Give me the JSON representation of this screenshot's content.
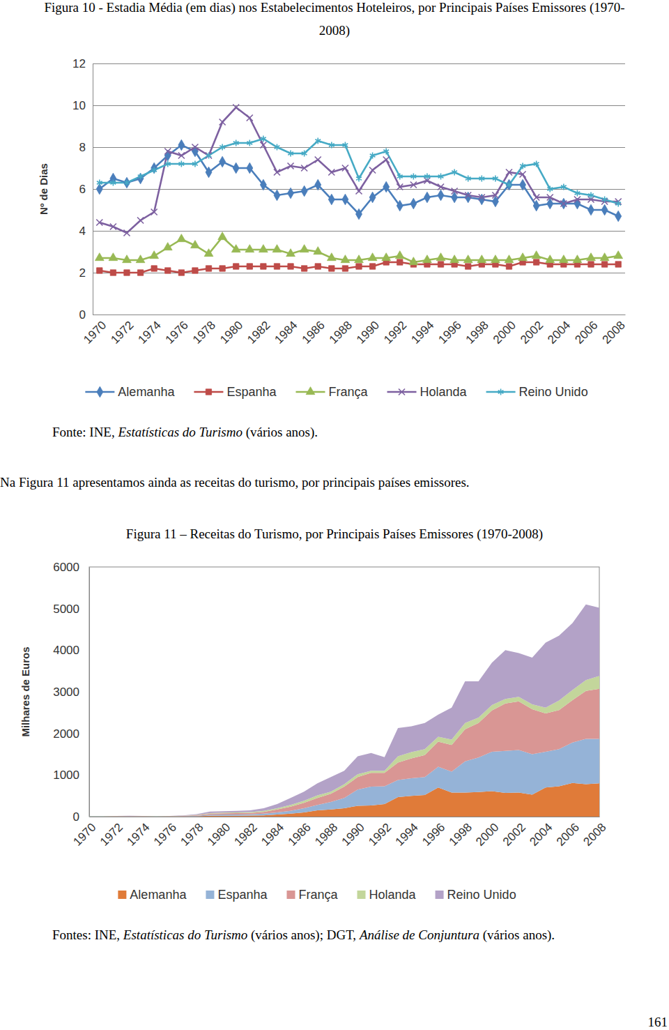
{
  "chart_data": [
    {
      "type": "line",
      "title": [
        "Figura 10 - Estadia Média (em dias) nos Estabelecimentos Hoteleiros, por Principais Países Emissores (1970-",
        "2008)"
      ],
      "y_label": "Nº de Dias",
      "source": [
        "Fonte: INE, ",
        "Estatísticas do Turismo",
        " (vários anos)."
      ],
      "x": [
        1970,
        1971,
        1972,
        1973,
        1974,
        1975,
        1976,
        1977,
        1978,
        1979,
        1980,
        1981,
        1982,
        1983,
        1984,
        1985,
        1986,
        1987,
        1988,
        1989,
        1990,
        1991,
        1992,
        1993,
        1994,
        1995,
        1996,
        1997,
        1998,
        1999,
        2000,
        2001,
        2002,
        2003,
        2004,
        2005,
        2006,
        2007,
        2008
      ],
      "xlim": [
        1969.5,
        2008.5
      ],
      "xticks": [
        1970,
        1972,
        1974,
        1976,
        1978,
        1980,
        1982,
        1984,
        1986,
        1988,
        1990,
        1992,
        1994,
        1996,
        1998,
        2000,
        2002,
        2004,
        2006,
        2008
      ],
      "ylim": [
        0,
        12
      ],
      "yticks": [
        0,
        2,
        4,
        6,
        8,
        10,
        12
      ],
      "grid": true,
      "legend": "bottom",
      "series": [
        {
          "name": "Alemanha",
          "color": "#4a7ebb",
          "marker": "diamond",
          "values": [
            6.0,
            6.5,
            6.3,
            6.5,
            7.0,
            7.6,
            8.1,
            7.8,
            6.8,
            7.3,
            7.0,
            7.0,
            6.2,
            5.7,
            5.8,
            5.9,
            6.2,
            5.5,
            5.5,
            4.8,
            5.6,
            6.1,
            5.2,
            5.3,
            5.6,
            5.7,
            5.6,
            5.6,
            5.5,
            5.4,
            6.2,
            6.2,
            5.2,
            5.3,
            5.3,
            5.3,
            5.0,
            5.0,
            4.7
          ]
        },
        {
          "name": "Espanha",
          "color": "#be4b48",
          "marker": "square",
          "values": [
            2.1,
            2.0,
            2.0,
            2.0,
            2.2,
            2.1,
            2.0,
            2.1,
            2.2,
            2.2,
            2.3,
            2.3,
            2.3,
            2.3,
            2.3,
            2.2,
            2.3,
            2.2,
            2.2,
            2.3,
            2.3,
            2.5,
            2.5,
            2.4,
            2.4,
            2.4,
            2.4,
            2.3,
            2.4,
            2.4,
            2.3,
            2.5,
            2.5,
            2.4,
            2.4,
            2.4,
            2.4,
            2.4,
            2.4
          ]
        },
        {
          "name": "França",
          "color": "#98b954",
          "marker": "triangle",
          "values": [
            2.7,
            2.7,
            2.6,
            2.6,
            2.8,
            3.2,
            3.6,
            3.3,
            2.9,
            3.7,
            3.1,
            3.1,
            3.1,
            3.1,
            2.9,
            3.1,
            3.0,
            2.7,
            2.6,
            2.6,
            2.7,
            2.7,
            2.8,
            2.5,
            2.6,
            2.7,
            2.6,
            2.6,
            2.6,
            2.6,
            2.6,
            2.7,
            2.8,
            2.6,
            2.6,
            2.6,
            2.7,
            2.7,
            2.8
          ]
        },
        {
          "name": "Holanda",
          "color": "#7d60a0",
          "marker": "times",
          "values": [
            4.4,
            4.2,
            3.9,
            4.5,
            4.9,
            7.8,
            7.6,
            8.0,
            7.6,
            9.2,
            9.9,
            9.4,
            8.1,
            6.8,
            7.1,
            7.0,
            7.4,
            6.8,
            7.0,
            5.9,
            6.9,
            7.4,
            6.1,
            6.2,
            6.4,
            6.1,
            5.9,
            5.7,
            5.6,
            5.7,
            6.8,
            6.7,
            5.6,
            5.6,
            5.3,
            5.5,
            5.5,
            5.4,
            5.4
          ]
        },
        {
          "name": "Reino Unido",
          "color": "#46aac5",
          "marker": "asterisk",
          "values": [
            6.3,
            6.3,
            6.3,
            6.6,
            6.9,
            7.2,
            7.2,
            7.2,
            7.6,
            8.0,
            8.2,
            8.2,
            8.4,
            8.0,
            7.7,
            7.7,
            8.3,
            8.1,
            8.1,
            6.5,
            7.6,
            7.8,
            6.6,
            6.6,
            6.6,
            6.6,
            6.8,
            6.5,
            6.5,
            6.5,
            6.2,
            7.1,
            7.2,
            6.0,
            6.1,
            5.8,
            5.7,
            5.5,
            5.3
          ]
        }
      ]
    },
    {
      "type": "area",
      "title": [
        "Figura 11 – Receitas do Turismo, por Principais Países Emissores (1970-2008)"
      ],
      "y_label": "Milhares de Euros",
      "source": [
        "Fontes: INE, ",
        "Estatísticas do Turismo",
        " (vários anos); DGT, ",
        "Análise de Conjuntura",
        " (vários anos)."
      ],
      "x": [
        1970,
        1971,
        1972,
        1973,
        1974,
        1975,
        1976,
        1977,
        1978,
        1979,
        1980,
        1981,
        1982,
        1983,
        1984,
        1985,
        1986,
        1987,
        1988,
        1989,
        1990,
        1991,
        1992,
        1993,
        1994,
        1995,
        1996,
        1997,
        1998,
        1999,
        2000,
        2001,
        2002,
        2003,
        2004,
        2005,
        2006,
        2007,
        2008
      ],
      "xlim": [
        1970,
        2008
      ],
      "xticks": [
        1970,
        1972,
        1974,
        1976,
        1978,
        1980,
        1982,
        1984,
        1986,
        1988,
        1990,
        1992,
        1994,
        1996,
        1998,
        2000,
        2002,
        2004,
        2006,
        2008
      ],
      "ylim": [
        0,
        6000
      ],
      "yticks": [
        0,
        1000,
        2000,
        3000,
        4000,
        5000,
        6000
      ],
      "grid": false,
      "stacked": true,
      "legend": "bottom",
      "series": [
        {
          "name": "Alemanha",
          "color": "#e07b39",
          "values": [
            2,
            2,
            3,
            4,
            3,
            2,
            3,
            5,
            10,
            20,
            20,
            22,
            25,
            30,
            50,
            70,
            100,
            150,
            170,
            200,
            260,
            270,
            300,
            470,
            500,
            520,
            700,
            580,
            580,
            590,
            610,
            570,
            580,
            530,
            700,
            730,
            810,
            780,
            800
          ]
        },
        {
          "name": "Espanha",
          "color": "#95b3d7",
          "values": [
            2,
            2,
            3,
            4,
            3,
            2,
            3,
            5,
            10,
            25,
            30,
            30,
            30,
            40,
            50,
            70,
            100,
            130,
            180,
            250,
            390,
            450,
            430,
            410,
            420,
            430,
            500,
            500,
            750,
            830,
            950,
            1010,
            1020,
            970,
            860,
            890,
            970,
            1090,
            1070
          ]
        },
        {
          "name": "França",
          "color": "#d99694",
          "values": [
            2,
            2,
            3,
            4,
            3,
            2,
            3,
            6,
            12,
            25,
            30,
            30,
            35,
            45,
            70,
            100,
            130,
            170,
            200,
            270,
            300,
            330,
            320,
            420,
            480,
            530,
            600,
            640,
            770,
            830,
            990,
            1140,
            1170,
            1080,
            920,
            940,
            1020,
            1150,
            1200
          ]
        },
        {
          "name": "Holanda",
          "color": "#c3d69b",
          "values": [
            1,
            1,
            2,
            2,
            2,
            1,
            2,
            4,
            8,
            15,
            15,
            18,
            20,
            25,
            30,
            40,
            50,
            60,
            50,
            60,
            70,
            50,
            50,
            150,
            150,
            140,
            120,
            130,
            150,
            130,
            130,
            110,
            110,
            120,
            140,
            230,
            240,
            260,
            310
          ]
        },
        {
          "name": "Reino Unido",
          "color": "#b3a2c7",
          "values": [
            3,
            3,
            4,
            6,
            4,
            3,
            4,
            10,
            20,
            35,
            35,
            40,
            40,
            60,
            100,
            170,
            220,
            290,
            350,
            320,
            430,
            430,
            330,
            680,
            620,
            630,
            530,
            770,
            1000,
            870,
            1020,
            1170,
            1050,
            1120,
            1560,
            1560,
            1610,
            1820,
            1640
          ]
        }
      ]
    }
  ],
  "page": {
    "paragraph": "Na Figura 11 apresentamos ainda as receitas do turismo, por principais países emissores.",
    "page_number": "161"
  }
}
